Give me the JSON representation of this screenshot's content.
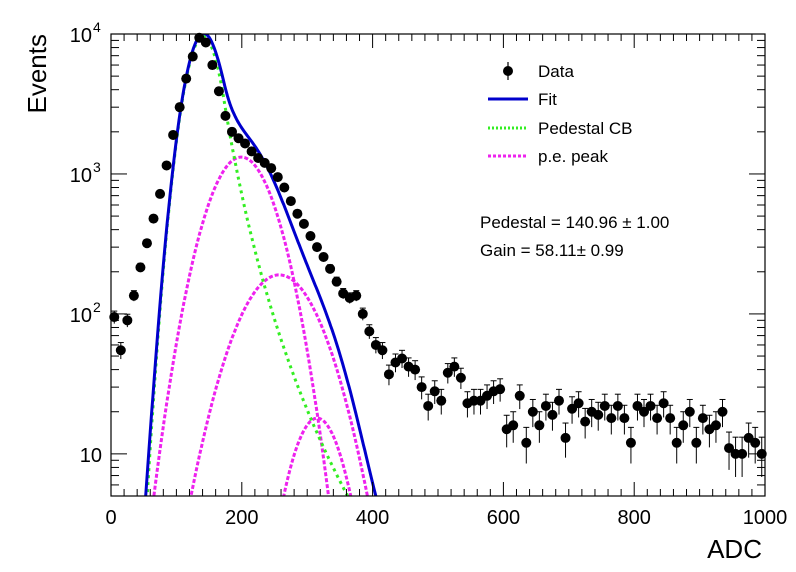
{
  "chart_data": {
    "type": "scatter",
    "xlabel": "ADC",
    "ylabel": "Events",
    "xlim": [
      0,
      1000
    ],
    "ylim": [
      5,
      10000
    ],
    "yscale": "log",
    "x_ticks": [
      "0",
      "200",
      "400",
      "600",
      "800",
      "1000"
    ],
    "y_ticks": [
      {
        "base": "10",
        "exp": "4"
      },
      {
        "base": "10",
        "exp": "3"
      },
      {
        "base": "10",
        "exp": "2"
      },
      {
        "base": "10",
        "exp": ""
      }
    ],
    "legend": {
      "position": "top-right",
      "entries": [
        {
          "label": "Data",
          "style": "marker",
          "color": "#000000"
        },
        {
          "label": "Fit",
          "style": "solid",
          "color": "#0000cc"
        },
        {
          "label": "Pedestal CB",
          "style": "dotted",
          "color": "#33ee22"
        },
        {
          "label": "p.e. peak",
          "style": "dotted",
          "color": "#ee22ee"
        }
      ]
    },
    "annotations": [
      "Pedestal = 140.96 ± 1.00",
      "Gain = 58.11± 0.99"
    ],
    "params": {
      "pedestal": 140.96,
      "gain": 58.11
    },
    "series": [
      {
        "name": "Data",
        "style": "points",
        "color": "#000000",
        "x": [
          5,
          15,
          25,
          35,
          45,
          55,
          65,
          75,
          85,
          95,
          105,
          115,
          125,
          135,
          145,
          155,
          165,
          175,
          185,
          195,
          205,
          215,
          225,
          235,
          245,
          255,
          265,
          275,
          285,
          295,
          305,
          315,
          325,
          335,
          345,
          355,
          365,
          375,
          385,
          395,
          405,
          415,
          425,
          435,
          445,
          455,
          465,
          475,
          485,
          495,
          505,
          515,
          525,
          535,
          545,
          555,
          565,
          575,
          585,
          595,
          605,
          615,
          625,
          635,
          645,
          655,
          665,
          675,
          685,
          695,
          705,
          715,
          725,
          735,
          745,
          755,
          765,
          775,
          785,
          795,
          805,
          815,
          825,
          835,
          845,
          855,
          865,
          875,
          885,
          895,
          905,
          915,
          925,
          935,
          945,
          955,
          965,
          975,
          985,
          995
        ],
        "y": [
          95,
          55,
          90,
          135,
          215,
          320,
          480,
          720,
          1150,
          1900,
          3000,
          4800,
          6900,
          9400,
          8700,
          6000,
          3900,
          2600,
          2000,
          1800,
          1650,
          1450,
          1300,
          1200,
          1100,
          950,
          800,
          640,
          520,
          440,
          360,
          300,
          255,
          210,
          170,
          140,
          130,
          135,
          100,
          75,
          60,
          55,
          37,
          45,
          48,
          42,
          40,
          30,
          22,
          28,
          24,
          38,
          42,
          35,
          23,
          24,
          24,
          26,
          28,
          29,
          15,
          16,
          26,
          12,
          20,
          16,
          22,
          19,
          24,
          13,
          21,
          23,
          17,
          20,
          19,
          22,
          18,
          22,
          18,
          12,
          22,
          20,
          22,
          18,
          23,
          18,
          12,
          16,
          20,
          12,
          18,
          15,
          16,
          20,
          11,
          10,
          10,
          13,
          12,
          10
        ],
        "yerr_frac": 0.15
      },
      {
        "name": "Fit",
        "style": "solid",
        "color": "#0000cc",
        "x": [],
        "y": []
      },
      {
        "name": "Pedestal CB",
        "style": "dotted",
        "color": "#33ee22",
        "x": [],
        "y": []
      },
      {
        "name": "p.e. peak",
        "style": "dotted",
        "color": "#ee22ee",
        "x": [],
        "y": []
      }
    ]
  }
}
